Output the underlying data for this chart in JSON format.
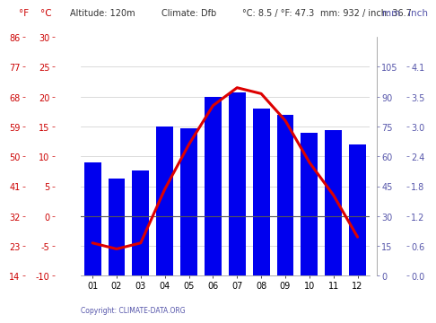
{
  "months": [
    "01",
    "02",
    "03",
    "04",
    "05",
    "06",
    "07",
    "08",
    "09",
    "10",
    "11",
    "12"
  ],
  "temp_c": [
    -4.5,
    -5.5,
    -4.5,
    4.5,
    12.0,
    18.5,
    21.5,
    20.5,
    16.0,
    9.0,
    3.5,
    -3.5
  ],
  "precip_mm": [
    57,
    49,
    53,
    75,
    74,
    90,
    92,
    84,
    81,
    72,
    73,
    66
  ],
  "bar_color": "#0000ee",
  "line_color": "#dd0000",
  "temp_c_min": -10,
  "temp_c_max": 30,
  "precip_min": 0,
  "precip_max": 120,
  "temp_yticks_c": [
    -10,
    -5,
    0,
    5,
    10,
    15,
    20,
    25,
    30
  ],
  "temp_yticks_f": [
    14,
    23,
    32,
    41,
    50,
    59,
    68,
    77,
    86
  ],
  "precip_yticks_mm": [
    0,
    15,
    30,
    45,
    60,
    75,
    90,
    105
  ],
  "precip_yticks_inch": [
    "0.0",
    "0.6",
    "1.2",
    "1.8",
    "2.4",
    "3.0",
    "3.5",
    "4.1"
  ],
  "left_label_f": "°F",
  "left_label_c": "°C",
  "right_label_mm": "mm",
  "right_label_inch": "inch",
  "copyright_text": "Copyright: CLIMATE-DATA.ORG",
  "background_color": "#ffffff",
  "grid_color": "#cccccc",
  "zero_line_color": "#555555",
  "axis_label_color": "#cc0000",
  "right_axis_color": "#5555aa",
  "spine_color": "#888888"
}
